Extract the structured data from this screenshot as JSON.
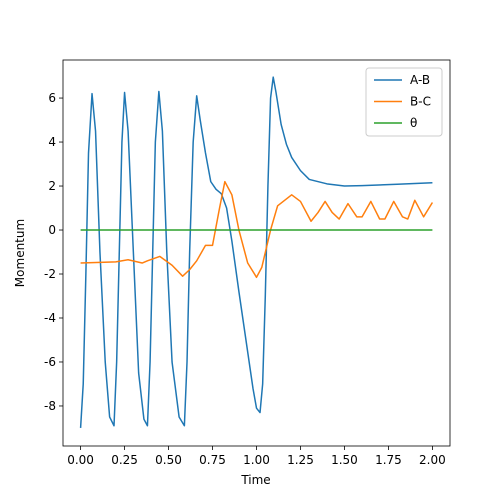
{
  "chart_data": {
    "type": "line",
    "x_label": "Time",
    "y_label": "Momentum",
    "xlim": [
      -0.1,
      2.1
    ],
    "ylim": [
      -9.82,
      7.73
    ],
    "xticks": [
      {
        "value": 0,
        "label": "0.00"
      },
      {
        "value": 0.25,
        "label": "0.25"
      },
      {
        "value": 0.5,
        "label": "0.50"
      },
      {
        "value": 0.75,
        "label": "0.75"
      },
      {
        "value": 1,
        "label": "1.00"
      },
      {
        "value": 1.25,
        "label": "1.25"
      },
      {
        "value": 1.5,
        "label": "1.50"
      },
      {
        "value": 1.75,
        "label": "1.75"
      },
      {
        "value": 2,
        "label": "2.00"
      }
    ],
    "yticks": [
      -8,
      -6,
      -4,
      -2,
      0,
      2,
      4,
      6
    ],
    "legend": "upper right",
    "series": [
      {
        "name": "A-B",
        "color": "#1f77b4",
        "x": [
          0,
          0.015,
          0.03,
          0.045,
          0.065,
          0.085,
          0.11,
          0.14,
          0.165,
          0.19,
          0.205,
          0.22,
          0.235,
          0.25,
          0.27,
          0.3,
          0.33,
          0.36,
          0.38,
          0.395,
          0.41,
          0.425,
          0.445,
          0.465,
          0.49,
          0.52,
          0.56,
          0.59,
          0.605,
          0.62,
          0.64,
          0.66,
          0.68,
          0.71,
          0.74,
          0.77,
          0.8,
          0.83,
          0.86,
          0.9,
          0.94,
          0.98,
          1.0,
          1.02,
          1.035,
          1.05,
          1.065,
          1.08,
          1.095,
          1.11,
          1.14,
          1.17,
          1.2,
          1.25,
          1.3,
          1.4,
          1.5,
          1.6,
          1.8,
          2.0
        ],
        "values": [
          -9,
          -7,
          -2,
          3.5,
          6.2,
          4.5,
          -1,
          -6,
          -8.5,
          -8.9,
          -6,
          -1,
          4,
          6.25,
          4.5,
          -1,
          -6.5,
          -8.6,
          -8.9,
          -6,
          -1,
          4,
          6.3,
          4.5,
          -1,
          -6,
          -8.5,
          -8.9,
          -6,
          -1,
          4,
          6.1,
          5,
          3.5,
          2.2,
          1.85,
          1.65,
          1,
          -0.5,
          -2.8,
          -5,
          -7.2,
          -8.1,
          -8.3,
          -7,
          -3,
          2,
          6,
          6.95,
          6.3,
          4.8,
          3.9,
          3.3,
          2.7,
          2.3,
          2.1,
          2.0,
          2.02,
          2.08,
          2.15
        ]
      },
      {
        "name": "B-C",
        "color": "#ff7f0e",
        "x": [
          0,
          0.2,
          0.27,
          0.35,
          0.38,
          0.45,
          0.52,
          0.58,
          0.62,
          0.66,
          0.71,
          0.75,
          0.79,
          0.82,
          0.86,
          0.9,
          0.95,
          1.0,
          1.03,
          1.08,
          1.12,
          1.2,
          1.25,
          1.31,
          1.35,
          1.39,
          1.43,
          1.47,
          1.52,
          1.57,
          1.6,
          1.65,
          1.7,
          1.73,
          1.78,
          1.83,
          1.86,
          1.9,
          1.95,
          2.0
        ],
        "values": [
          -1.5,
          -1.45,
          -1.35,
          -1.5,
          -1.4,
          -1.2,
          -1.6,
          -2.1,
          -1.8,
          -1.4,
          -0.7,
          -0.7,
          1.0,
          2.2,
          1.6,
          0,
          -1.5,
          -2.15,
          -1.7,
          0,
          1.1,
          1.6,
          1.3,
          0.4,
          0.8,
          1.3,
          0.8,
          0.5,
          1.2,
          0.6,
          0.6,
          1.3,
          0.5,
          0.5,
          1.3,
          0.6,
          0.5,
          1.35,
          0.6,
          1.25
        ]
      },
      {
        "name": "θ",
        "color": "#2ca02c",
        "x": [
          0,
          2
        ],
        "values": [
          0,
          0
        ]
      }
    ]
  }
}
